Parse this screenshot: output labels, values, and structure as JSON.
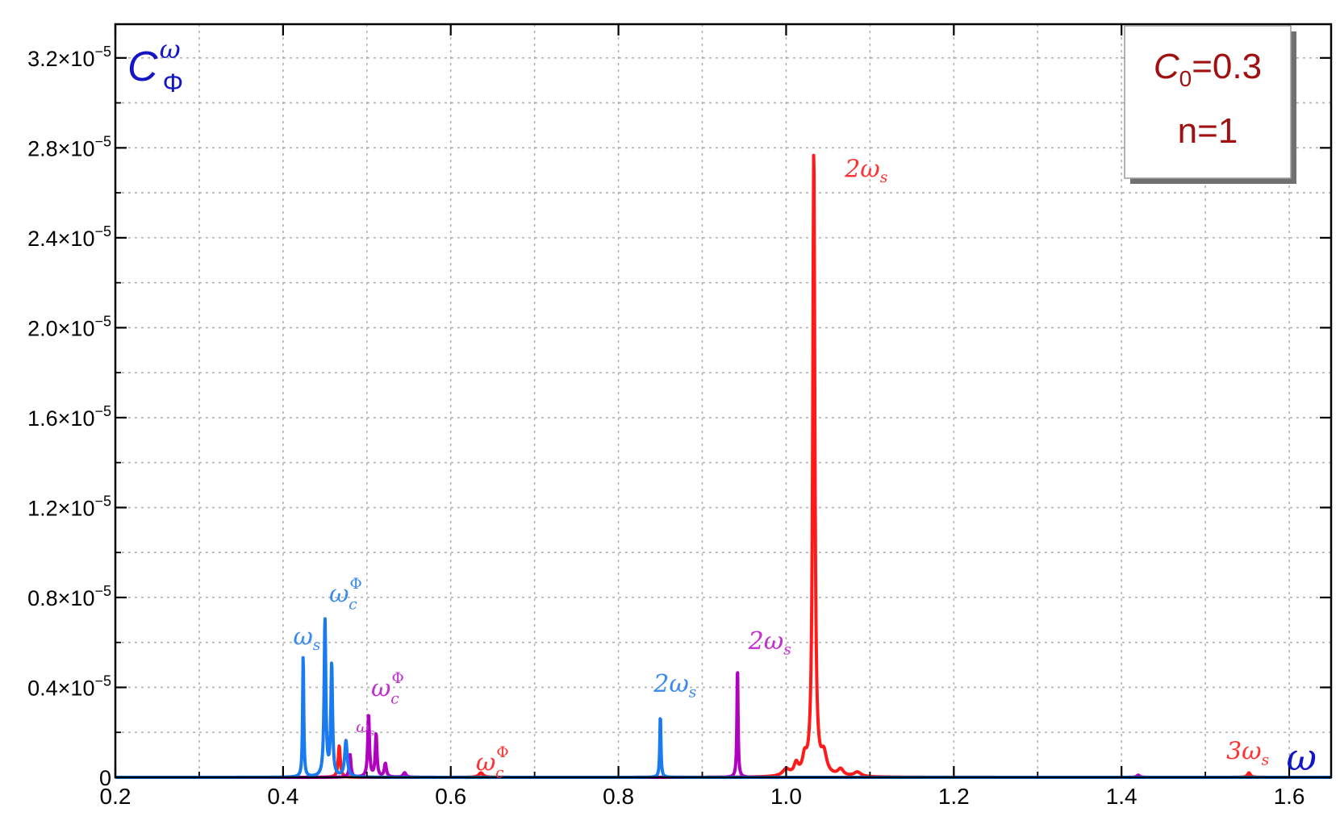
{
  "chart_data": {
    "type": "line",
    "x_range": [
      0.2,
      1.65
    ],
    "y_range": [
      0,
      3.35e-05
    ],
    "grid": true,
    "x_ticks": [
      {
        "value": 0.2,
        "label": "0.2"
      },
      {
        "value": 0.4,
        "label": "0.4"
      },
      {
        "value": 0.6,
        "label": "0.6"
      },
      {
        "value": 0.8,
        "label": "0.8"
      },
      {
        "value": 1.0,
        "label": "1.0"
      },
      {
        "value": 1.2,
        "label": "1.2"
      },
      {
        "value": 1.4,
        "label": "1.4"
      },
      {
        "value": 1.6,
        "label": "1.6"
      }
    ],
    "y_ticks": [
      {
        "value": 0,
        "mantissa": "0",
        "exponent": ""
      },
      {
        "value": 4e-06,
        "mantissa": "0.4×10",
        "exponent": "−5"
      },
      {
        "value": 8e-06,
        "mantissa": "0.8×10",
        "exponent": "−5"
      },
      {
        "value": 1.2e-05,
        "mantissa": "1.2×10",
        "exponent": "−5"
      },
      {
        "value": 1.6e-05,
        "mantissa": "1.6×10",
        "exponent": "−5"
      },
      {
        "value": 2e-05,
        "mantissa": "2.0×10",
        "exponent": "−5"
      },
      {
        "value": 2.4e-05,
        "mantissa": "2.4×10",
        "exponent": "−5"
      },
      {
        "value": 2.8e-05,
        "mantissa": "2.8×10",
        "exponent": "−5"
      },
      {
        "value": 3.2e-05,
        "mantissa": "3.2×10",
        "exponent": "−5"
      }
    ],
    "ylabel": {
      "base": "C",
      "sup": "ω",
      "sub": "Φ",
      "color": "#1515c8"
    },
    "xlabel": {
      "text": "ω",
      "color": "#1515c8"
    },
    "legend_box": {
      "line1_main": "C",
      "line1_sub": "0",
      "line1_rest": "=0.3",
      "line2": "n=1",
      "color": "#a01010",
      "placement": "top-right"
    },
    "series": [
      {
        "color": "#ff1a1a",
        "peaks": [
          {
            "x": 1.033,
            "y": 2.78e-05,
            "w": 0.0015
          },
          {
            "x": 1.045,
            "y": 9e-07,
            "w": 0.004
          },
          {
            "x": 1.022,
            "y": 7e-07,
            "w": 0.003
          },
          {
            "x": 1.012,
            "y": 5e-07,
            "w": 0.003
          },
          {
            "x": 1.0,
            "y": 3e-07,
            "w": 0.005
          },
          {
            "x": 1.065,
            "y": 3e-07,
            "w": 0.004
          },
          {
            "x": 1.085,
            "y": 2e-07,
            "w": 0.005
          },
          {
            "x": 0.467,
            "y": 1.4e-06,
            "w": 0.0015
          },
          {
            "x": 0.636,
            "y": 2e-07,
            "w": 0.003
          },
          {
            "x": 1.552,
            "y": 2e-07,
            "w": 0.002
          }
        ]
      },
      {
        "color": "#b000c0",
        "peaks": [
          {
            "x": 0.942,
            "y": 5e-06,
            "w": 0.0008
          },
          {
            "x": 0.502,
            "y": 2.8e-06,
            "w": 0.0012
          },
          {
            "x": 0.511,
            "y": 1.9e-06,
            "w": 0.0012
          },
          {
            "x": 0.522,
            "y": 6e-07,
            "w": 0.0015
          },
          {
            "x": 0.48,
            "y": 1e-06,
            "w": 0.0012
          },
          {
            "x": 0.545,
            "y": 2e-07,
            "w": 0.002
          },
          {
            "x": 1.42,
            "y": 1e-07,
            "w": 0.002
          }
        ]
      },
      {
        "color": "#1a7af0",
        "peaks": [
          {
            "x": 0.424,
            "y": 5.5e-06,
            "w": 0.0008
          },
          {
            "x": 0.45,
            "y": 7e-06,
            "w": 0.0012
          },
          {
            "x": 0.458,
            "y": 5e-06,
            "w": 0.0012
          },
          {
            "x": 0.475,
            "y": 1.6e-06,
            "w": 0.0018
          },
          {
            "x": 0.85,
            "y": 2.8e-06,
            "w": 0.0008
          }
        ]
      }
    ],
    "annotations": [
      {
        "base": "2ω",
        "sub": "s",
        "sup": "",
        "x": 1.07,
        "y": 2.67e-05,
        "color": "#ff3333",
        "size": 30
      },
      {
        "base": "3ω",
        "sub": "s",
        "sup": "",
        "x": 1.525,
        "y": 8e-07,
        "color": "#ff3333",
        "size": 30
      },
      {
        "base": "ω",
        "sub": "c",
        "sup": "Φ",
        "x": 0.63,
        "y": 3e-07,
        "color": "#ff3333",
        "size": 30
      },
      {
        "base": "2ω",
        "sub": "s",
        "sup": "",
        "x": 0.955,
        "y": 5.7e-06,
        "color": "#c030d0",
        "size": 30
      },
      {
        "base": "ω",
        "sub": "c",
        "sup": "Φ",
        "x": 0.505,
        "y": 3.6e-06,
        "color": "#c030d0",
        "size": 30
      },
      {
        "base": "ω",
        "sub": "s",
        "sup": "",
        "x": 0.487,
        "y": 2e-06,
        "color": "#c030d0",
        "size": 20
      },
      {
        "base": "2ω",
        "sub": "s",
        "sup": "",
        "x": 0.842,
        "y": 3.8e-06,
        "color": "#3a8af0",
        "size": 30
      },
      {
        "base": "ω",
        "sub": "c",
        "sup": "Φ",
        "x": 0.455,
        "y": 7.8e-06,
        "color": "#3a8af0",
        "size": 30
      },
      {
        "base": "ω",
        "sub": "s",
        "sup": "",
        "x": 0.412,
        "y": 5.9e-06,
        "color": "#3a8af0",
        "size": 30
      }
    ]
  }
}
